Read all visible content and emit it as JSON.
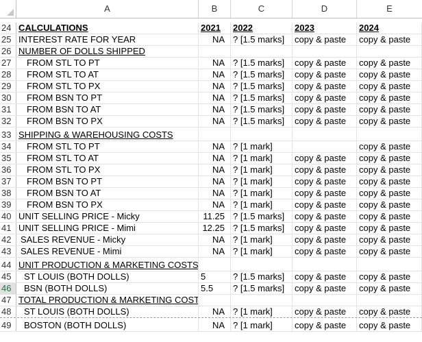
{
  "columns": [
    "A",
    "B",
    "C",
    "D",
    "E"
  ],
  "rows": [
    {
      "n": "24",
      "A": "CALCULATIONS",
      "B": "2021",
      "C": "2022",
      "D": "2023",
      "E": "2024",
      "style": "bu-all"
    },
    {
      "n": "25",
      "A": "INTEREST RATE FOR YEAR",
      "B": "NA",
      "C": "? [1.5 marks]",
      "D": "copy & paste",
      "E": "copy & paste"
    },
    {
      "n": "26",
      "A": "NUMBER OF DOLLS SHIPPED",
      "B": "",
      "C": "",
      "D": "",
      "E": "",
      "style": "u"
    },
    {
      "n": "27",
      "A": "FROM STL TO PT",
      "B": "NA",
      "C": "? [1.5 marks]",
      "D": "copy & paste",
      "E": "copy & paste",
      "indent": 1
    },
    {
      "n": "28",
      "A": "FROM STL TO AT",
      "B": "NA",
      "C": "? [1.5 marks]",
      "D": "copy & paste",
      "E": "copy & paste",
      "indent": 1
    },
    {
      "n": "29",
      "A": "FROM STL TO PX",
      "B": "NA",
      "C": "? [1.5 marks]",
      "D": "copy & paste",
      "E": "copy & paste",
      "indent": 1
    },
    {
      "n": "30",
      "A": "FROM BSN TO PT",
      "B": "NA",
      "C": "? [1.5 marks]",
      "D": "copy & paste",
      "E": "copy & paste",
      "indent": 1
    },
    {
      "n": "31",
      "A": "FROM BSN TO AT",
      "B": "NA",
      "C": "? [1.5 marks]",
      "D": "copy & paste",
      "E": "copy & paste",
      "indent": 1
    },
    {
      "n": "32",
      "A": "FROM BSN TO PX",
      "B": "NA",
      "C": "? [1.5 marks]",
      "D": "copy & paste",
      "E": "copy & paste",
      "indent": 1
    },
    {
      "n": "33",
      "A": "SHIPPING & WAREHOUSING COSTS",
      "B": "",
      "C": "",
      "D": "",
      "E": "",
      "style": "u",
      "tall": true
    },
    {
      "n": "34",
      "A": "FROM STL TO PT",
      "B": "NA",
      "C": "? [1 mark]",
      "D": "",
      "E": "copy & paste",
      "indent": 1
    },
    {
      "n": "35",
      "A": "FROM STL TO AT",
      "B": "NA",
      "C": "? [1 mark]",
      "D": "copy & paste",
      "E": "copy & paste",
      "indent": 1
    },
    {
      "n": "36",
      "A": "FROM STL TO PX",
      "B": "NA",
      "C": "? [1 mark]",
      "D": "copy & paste",
      "E": "copy & paste",
      "indent": 1
    },
    {
      "n": "37",
      "A": "FROM BSN TO PT",
      "B": "NA",
      "C": "? [1 mark]",
      "D": "copy & paste",
      "E": "copy & paste",
      "indent": 1
    },
    {
      "n": "38",
      "A": "FROM BSN TO AT",
      "B": "NA",
      "C": "? [1 mark]",
      "D": "copy & paste",
      "E": "copy & paste",
      "indent": 1
    },
    {
      "n": "39",
      "A": "FROM BSN TO PX",
      "B": "NA",
      "C": "? [1 mark]",
      "D": "copy & paste",
      "E": "copy & paste",
      "indent": 1
    },
    {
      "n": "40",
      "A": "UNIT SELLING PRICE - Micky",
      "B": "11.25",
      "C": "? [1.5 marks]",
      "D": "copy & paste",
      "E": "copy & paste"
    },
    {
      "n": "41",
      "A": "UNIT SELLING PRICE - Mimi",
      "B": "12.25",
      "C": "? [1.5 marks]",
      "D": "copy & paste",
      "E": "copy & paste"
    },
    {
      "n": "42",
      "A": "SALES REVENUE - Micky",
      "B": "NA",
      "C": "? [1 mark]",
      "D": "copy & paste",
      "E": "copy & paste",
      "indent": 3
    },
    {
      "n": "43",
      "A": "SALES REVENUE - Mimi",
      "B": "NA",
      "C": "? [1 mark]",
      "D": "copy & paste",
      "E": "copy & paste",
      "indent": 3
    },
    {
      "n": "44",
      "A": "UNIT PRODUCTION & MARKETING COSTS:",
      "B": "",
      "C": "",
      "D": "",
      "E": "",
      "style": "u",
      "tall": true
    },
    {
      "n": "45",
      "A": "ST LOUIS (BOTH DOLLS)",
      "B": "5",
      "C": "? [1.5 marks]",
      "D": "copy & paste",
      "E": "copy & paste",
      "indent": 2,
      "bleft": true
    },
    {
      "n": "46",
      "A": "BSN (BOTH DOLLS)",
      "B": "5.5",
      "C": "? [1.5 marks]",
      "D": "copy & paste",
      "E": "copy & paste",
      "indent": 2,
      "bleft": true,
      "sel": true
    },
    {
      "n": "47",
      "A": "TOTAL PRODUCTION & MARKETING COSTS",
      "B": "",
      "C": "",
      "D": "",
      "E": "",
      "style": "u"
    },
    {
      "n": "48",
      "A": "ST LOUIS (BOTH DOLLS)",
      "B": "NA",
      "C": "? [1 mark]",
      "D": "copy & paste",
      "E": "copy & paste",
      "indent": 2,
      "dash": true
    },
    {
      "n": "49",
      "A": "BOSTON (BOTH DOLLS)",
      "B": "NA",
      "C": "? [1 mark]",
      "D": "copy & paste",
      "E": "copy & paste",
      "indent": 2,
      "tall": true
    }
  ]
}
